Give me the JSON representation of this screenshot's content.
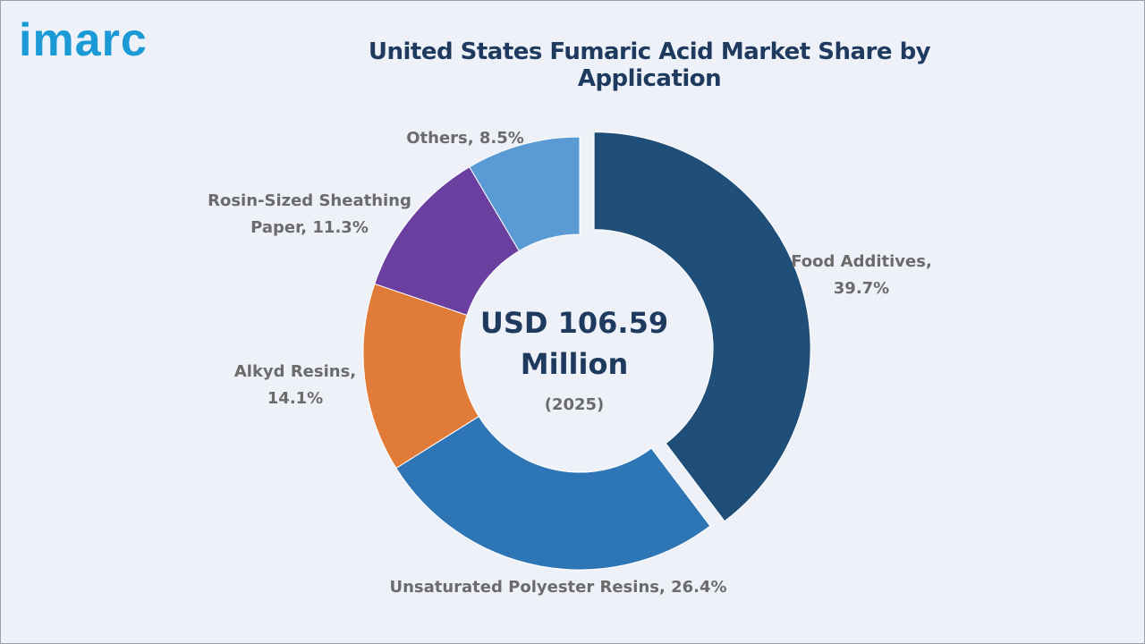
{
  "logo": {
    "text": "imarc"
  },
  "chart_data": {
    "type": "pie",
    "title": "United States Fumaric Acid Market Share by Application",
    "center_text": [
      "USD 106.59",
      "Million"
    ],
    "center_subtext": "(2025)",
    "slices": [
      {
        "label_lines": [
          "Food Additives,",
          "39.7%"
        ],
        "category": "Food Additives",
        "value": 39.7,
        "color": "#1f4e79",
        "exploded": true
      },
      {
        "label_lines": [
          "Unsaturated Polyester Resins, 26.4%"
        ],
        "category": "Unsaturated Polyester Resins",
        "value": 26.4,
        "color": "#2e75b6",
        "exploded": false
      },
      {
        "label_lines": [
          "Alkyd Resins,",
          "14.1%"
        ],
        "category": "Alkyd Resins",
        "value": 14.1,
        "color": "#e07b39",
        "exploded": false
      },
      {
        "label_lines": [
          "Rosin-Sized Sheathing",
          "Paper, 11.3%"
        ],
        "category": "Rosin-Sized Sheathing Paper",
        "value": 11.3,
        "color": "#6a3fa0",
        "exploded": false
      },
      {
        "label_lines": [
          "Others, 8.5%"
        ],
        "category": "Others",
        "value": 8.5,
        "color": "#5b9bd5",
        "exploded": false
      }
    ]
  }
}
